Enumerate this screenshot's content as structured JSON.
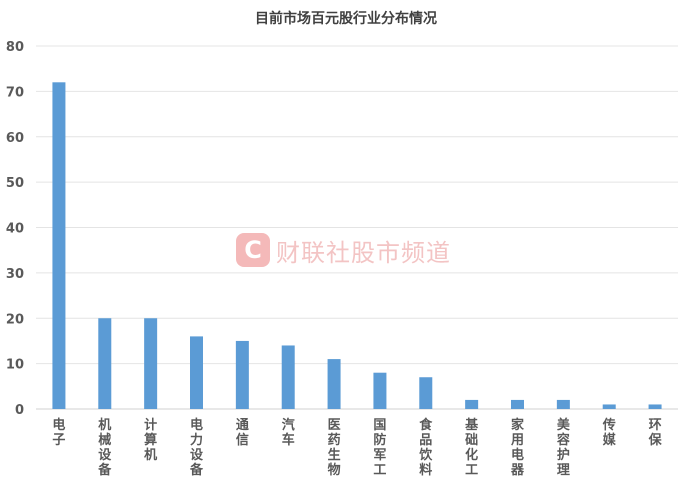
{
  "chart_data": {
    "type": "bar",
    "title": "目前市场百元股行业分布情况",
    "xlabel": "",
    "ylabel": "",
    "categories": [
      "电子",
      "机械设备",
      "计算机",
      "电力设备",
      "通信",
      "汽车",
      "医药生物",
      "国防军工",
      "食品饮料",
      "基础化工",
      "家用电器",
      "美容护理",
      "传媒",
      "环保"
    ],
    "values": [
      72,
      20,
      20,
      16,
      15,
      14,
      11,
      8,
      7,
      2,
      2,
      2,
      1,
      1
    ],
    "ylim": [
      0,
      80
    ],
    "yticks": [
      0,
      10,
      20,
      30,
      40,
      50,
      60,
      70,
      80
    ],
    "grid": true,
    "bar_color": "#5b9bd5"
  },
  "watermark": {
    "logo_letter": "C",
    "text": "财联社股市频道"
  }
}
